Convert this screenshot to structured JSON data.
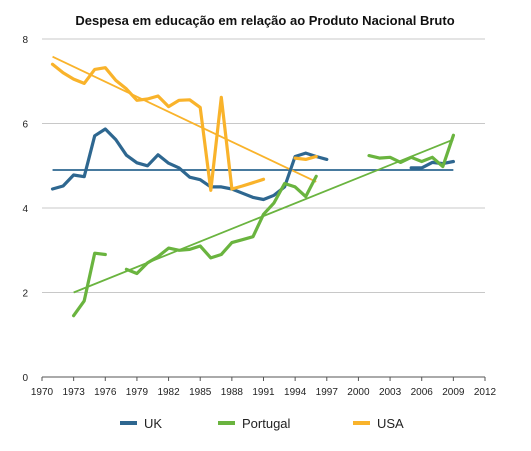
{
  "chart_data": {
    "type": "line",
    "title": "Despesa em educação em relação ao Produto Nacional Bruto",
    "xlabel": "",
    "ylabel": "",
    "xlim": [
      1970,
      2012
    ],
    "ylim": [
      0,
      8
    ],
    "x_ticks": [
      "1970",
      "1973",
      "1976",
      "1979",
      "1982",
      "1985",
      "1988",
      "1991",
      "1994",
      "1997",
      "2000",
      "2003",
      "2006",
      "2009",
      "2012"
    ],
    "y_ticks": [
      "0",
      "2",
      "4",
      "6",
      "8"
    ],
    "grid": "horizontal",
    "legend_position": "bottom",
    "series": [
      {
        "name": "UK",
        "color": "#2e6790",
        "segments": [
          [
            [
              1971,
              4.45
            ],
            [
              1972,
              4.52
            ],
            [
              1973,
              4.78
            ],
            [
              1974,
              4.74
            ],
            [
              1975,
              5.71
            ],
            [
              1976,
              5.87
            ],
            [
              1977,
              5.62
            ],
            [
              1978,
              5.25
            ],
            [
              1979,
              5.07
            ],
            [
              1980,
              5.0
            ],
            [
              1981,
              5.26
            ],
            [
              1982,
              5.06
            ],
            [
              1983,
              4.95
            ],
            [
              1984,
              4.73
            ],
            [
              1985,
              4.67
            ],
            [
              1986,
              4.5
            ],
            [
              1987,
              4.5
            ],
            [
              1988,
              4.45
            ],
            [
              1989,
              4.35
            ],
            [
              1990,
              4.25
            ],
            [
              1991,
              4.2
            ],
            [
              1992,
              4.3
            ],
            [
              1993,
              4.5
            ],
            [
              1994,
              5.22
            ],
            [
              1995,
              5.3
            ],
            [
              1996,
              5.22
            ],
            [
              1997,
              5.15
            ]
          ],
          [
            [
              2005,
              4.95
            ],
            [
              2006,
              4.95
            ],
            [
              2007,
              5.08
            ],
            [
              2008,
              5.05
            ],
            [
              2009,
              5.1
            ]
          ]
        ],
        "trend": [
          [
            1971,
            4.9
          ],
          [
            2009,
            4.9
          ]
        ]
      },
      {
        "name": "Portugal",
        "color": "#6ab43f",
        "segments": [
          [
            [
              1973,
              1.45
            ],
            [
              1974,
              1.8
            ],
            [
              1975,
              2.93
            ],
            [
              1976,
              2.9
            ]
          ],
          [
            [
              1978,
              2.55
            ],
            [
              1979,
              2.45
            ],
            [
              1980,
              2.7
            ],
            [
              1981,
              2.85
            ],
            [
              1982,
              3.05
            ],
            [
              1983,
              3.0
            ],
            [
              1984,
              3.02
            ],
            [
              1985,
              3.1
            ],
            [
              1986,
              2.82
            ],
            [
              1987,
              2.9
            ],
            [
              1988,
              3.18
            ],
            [
              1989,
              3.25
            ],
            [
              1990,
              3.32
            ],
            [
              1991,
              3.85
            ],
            [
              1992,
              4.12
            ],
            [
              1993,
              4.58
            ],
            [
              1994,
              4.5
            ],
            [
              1995,
              4.27
            ],
            [
              1996,
              4.75
            ]
          ],
          [
            [
              2001,
              5.24
            ],
            [
              2002,
              5.18
            ],
            [
              2003,
              5.2
            ],
            [
              2004,
              5.08
            ],
            [
              2005,
              5.2
            ],
            [
              2006,
              5.1
            ],
            [
              2007,
              5.2
            ],
            [
              2008,
              4.98
            ],
            [
              2009,
              5.72
            ]
          ]
        ],
        "trend": [
          [
            1973,
            2.0
          ],
          [
            2009,
            5.62
          ]
        ]
      },
      {
        "name": "USA",
        "color": "#f9b32b",
        "segments": [
          [
            [
              1971,
              7.4
            ],
            [
              1972,
              7.2
            ],
            [
              1973,
              7.05
            ],
            [
              1974,
              6.95
            ],
            [
              1975,
              7.28
            ],
            [
              1976,
              7.32
            ],
            [
              1977,
              7.02
            ],
            [
              1978,
              6.82
            ],
            [
              1979,
              6.55
            ],
            [
              1980,
              6.58
            ],
            [
              1981,
              6.65
            ],
            [
              1982,
              6.4
            ],
            [
              1983,
              6.55
            ],
            [
              1984,
              6.56
            ],
            [
              1985,
              6.38
            ],
            [
              1986,
              4.42
            ],
            [
              1987,
              6.62
            ],
            [
              1988,
              4.45
            ],
            [
              1989,
              4.52
            ],
            [
              1990,
              4.6
            ],
            [
              1991,
              4.68
            ]
          ],
          [
            [
              1994,
              5.18
            ],
            [
              1995,
              5.15
            ],
            [
              1996,
              5.22
            ]
          ]
        ],
        "trend": [
          [
            1971,
            7.58
          ],
          [
            1996,
            4.62
          ]
        ]
      }
    ]
  }
}
